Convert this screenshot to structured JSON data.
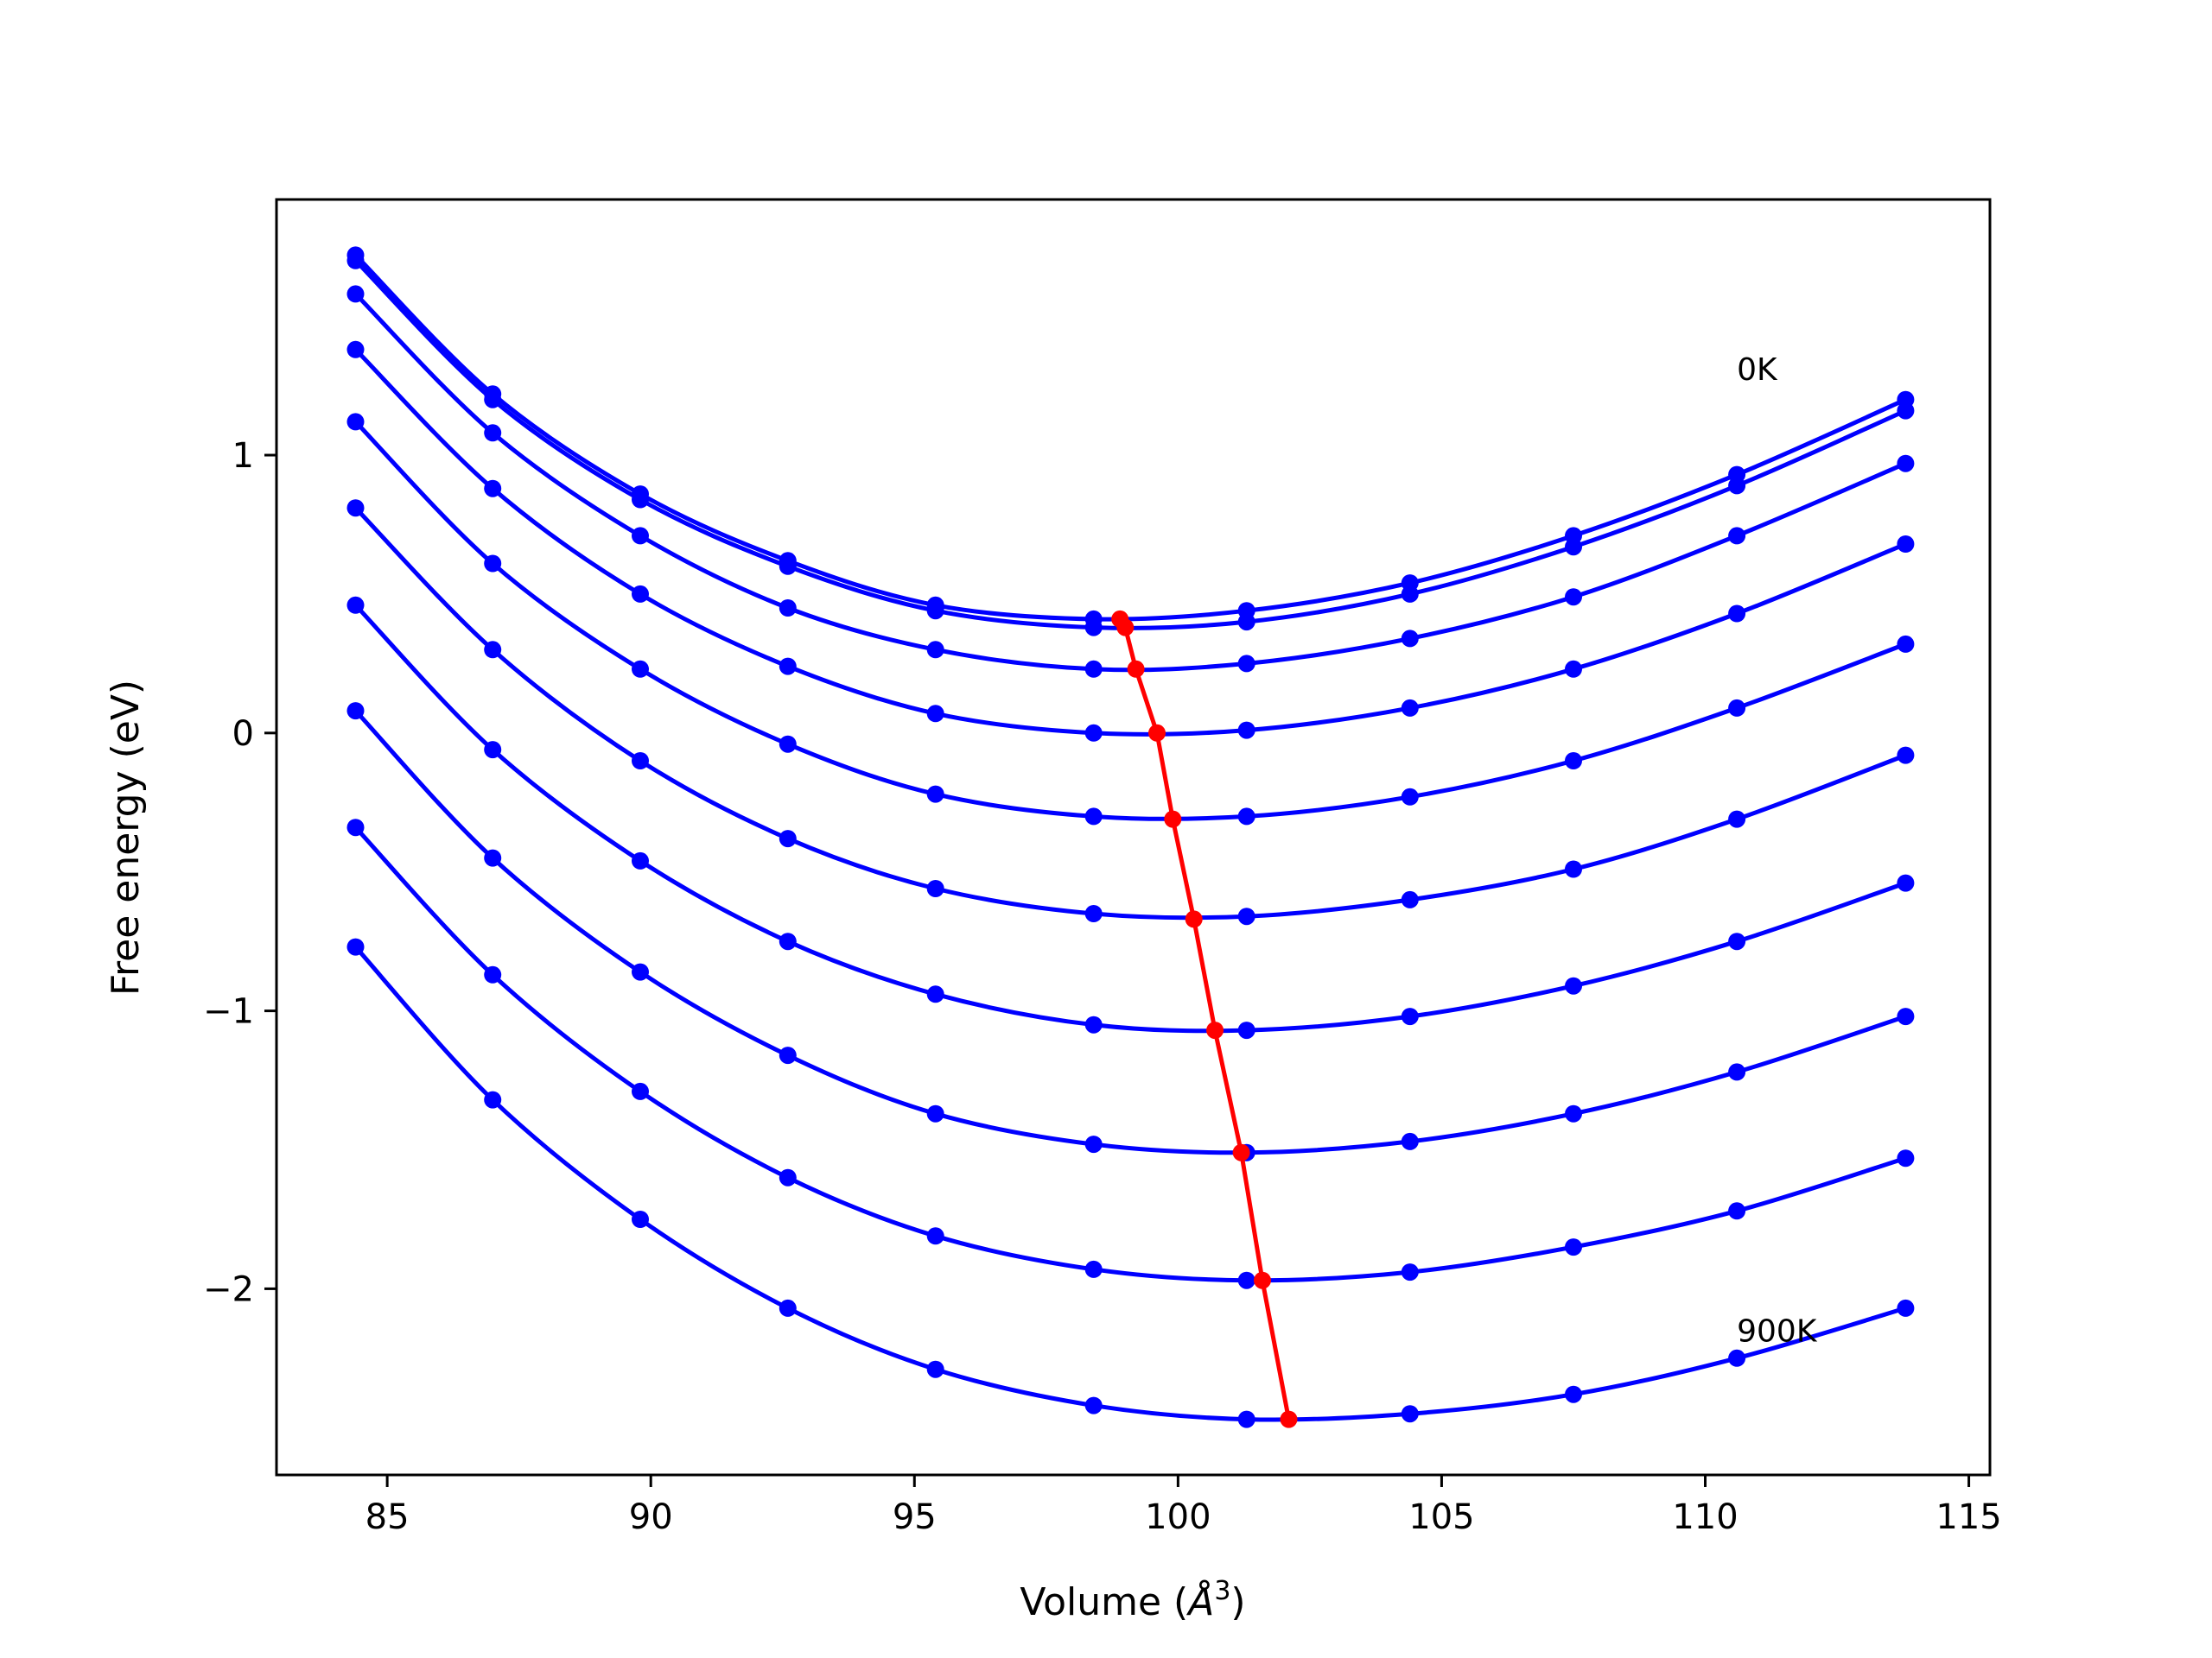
{
  "chart_data": {
    "type": "line",
    "xlabel": "Volume (Å^3)",
    "ylabel": "Free energy (eV)",
    "xlim": [
      82.9,
      115.4
    ],
    "ylim": [
      -2.67,
      1.92
    ],
    "xticks": [
      85,
      90,
      95,
      100,
      105,
      110,
      115
    ],
    "yticks": [
      -2,
      -1,
      0,
      1
    ],
    "ytick_labels": [
      "−2",
      "−1",
      "0",
      "1"
    ],
    "grid": false,
    "legend": "none",
    "x_points": [
      84.4,
      87.0,
      89.8,
      92.6,
      95.4,
      98.4,
      101.3,
      104.4,
      107.5,
      110.6,
      113.8
    ],
    "series": [
      {
        "values": [
          1.72,
          1.22,
          0.86,
          0.62,
          0.46,
          0.41,
          0.44,
          0.54,
          0.71,
          0.93,
          1.2
        ]
      },
      {
        "values": [
          1.7,
          1.2,
          0.84,
          0.6,
          0.44,
          0.38,
          0.4,
          0.5,
          0.67,
          0.89,
          1.16
        ]
      },
      {
        "values": [
          1.58,
          1.08,
          0.71,
          0.45,
          0.3,
          0.23,
          0.25,
          0.34,
          0.49,
          0.71,
          0.97
        ]
      },
      {
        "values": [
          1.38,
          0.88,
          0.5,
          0.24,
          0.07,
          0.0,
          0.01,
          0.09,
          0.23,
          0.43,
          0.68
        ]
      },
      {
        "values": [
          1.12,
          0.61,
          0.23,
          -0.04,
          -0.22,
          -0.3,
          -0.3,
          -0.23,
          -0.1,
          0.09,
          0.32
        ]
      },
      {
        "values": [
          0.81,
          0.3,
          -0.1,
          -0.38,
          -0.56,
          -0.65,
          -0.66,
          -0.6,
          -0.49,
          -0.31,
          -0.08
        ]
      },
      {
        "values": [
          0.46,
          -0.06,
          -0.46,
          -0.75,
          -0.94,
          -1.05,
          -1.07,
          -1.02,
          -0.91,
          -0.75,
          -0.54
        ]
      },
      {
        "values": [
          0.08,
          -0.45,
          -0.86,
          -1.16,
          -1.37,
          -1.48,
          -1.51,
          -1.47,
          -1.37,
          -1.22,
          -1.02
        ]
      },
      {
        "values": [
          -0.34,
          -0.87,
          -1.29,
          -1.6,
          -1.81,
          -1.93,
          -1.97,
          -1.94,
          -1.85,
          -1.72,
          -1.53
        ]
      },
      {
        "values": [
          -0.77,
          -1.32,
          -1.75,
          -2.07,
          -2.29,
          -2.42,
          -2.47,
          -2.45,
          -2.38,
          -2.25,
          -2.07
        ]
      }
    ],
    "minimum_path": {
      "color": "#ff0000",
      "x": [
        98.9,
        99.0,
        99.2,
        99.6,
        99.9,
        100.3,
        100.7,
        101.2,
        101.6,
        102.1
      ],
      "y": [
        0.41,
        0.38,
        0.23,
        0.0,
        -0.31,
        -0.67,
        -1.07,
        -1.51,
        -1.97,
        -2.47
      ]
    },
    "curve_color": "#0000ff",
    "annotations": [
      {
        "text": "0K",
        "x": 110.6,
        "y": 1.27
      },
      {
        "text": "900K",
        "x": 110.6,
        "y": -2.19
      }
    ]
  }
}
